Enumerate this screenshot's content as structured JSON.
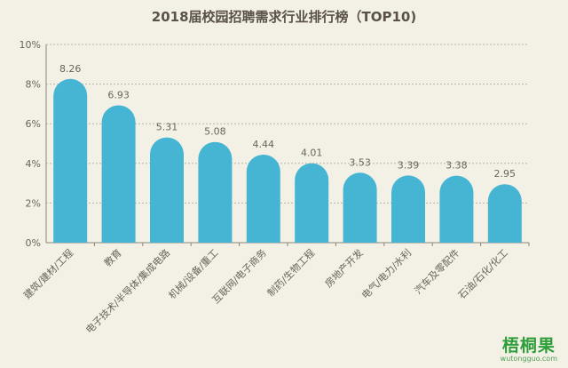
{
  "chart_data": {
    "type": "bar",
    "title": "2018届校园招聘需求行业排行榜（TOP10)",
    "categories": [
      "建筑/建材/工程",
      "教育",
      "电子技术/半导体/集成电路",
      "机械/设备/重工",
      "互联网/电子商务",
      "制药/生物工程",
      "房地产开发",
      "电气/电力/水利",
      "汽车及零配件",
      "石油/石化/化工"
    ],
    "values": [
      8.26,
      6.93,
      5.31,
      5.08,
      4.44,
      4.01,
      3.53,
      3.39,
      3.38,
      2.95
    ],
    "value_labels": [
      "8.26",
      "6.93",
      "5.31",
      "5.08",
      "4.44",
      "4.01",
      "3.53",
      "3.39",
      "3.38",
      "2.95"
    ],
    "ylim": [
      0,
      10
    ],
    "yticks": [
      "0%",
      "2%",
      "4%",
      "6%",
      "8%",
      "10%"
    ],
    "grid": true,
    "colors": {
      "bar": "#45b5d3",
      "grid": "#b9b5a8",
      "text": "#6b635a",
      "axis": "#8a857a"
    }
  },
  "watermark": {
    "main": "梧桐果",
    "sub": "wutongguo.com"
  }
}
